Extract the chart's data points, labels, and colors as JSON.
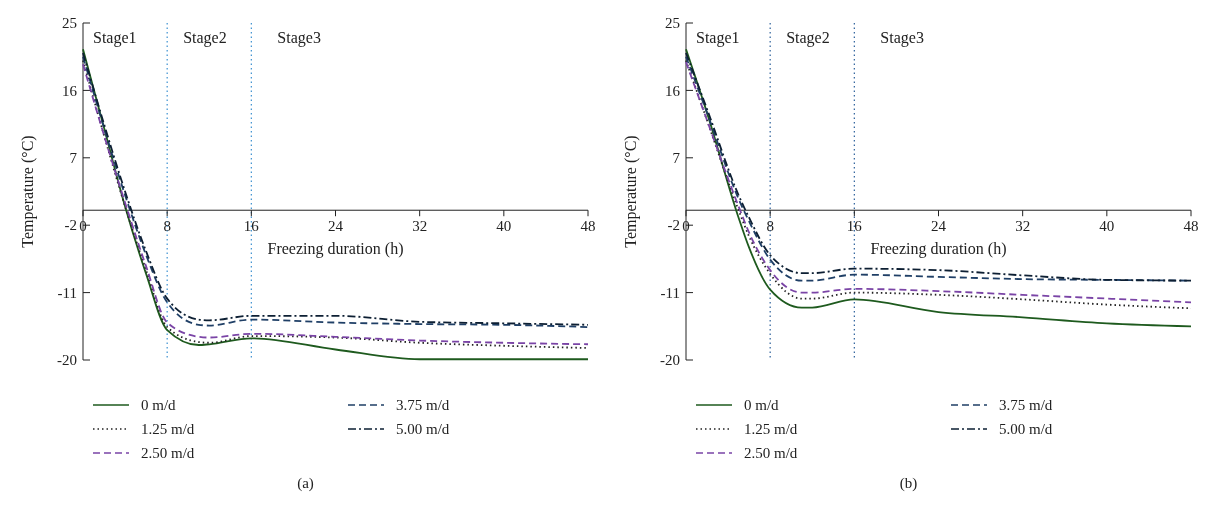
{
  "chart_data": [
    {
      "type": "line",
      "ylabel": "Temperature (°C)",
      "xlabel": "Freezing duration (h)",
      "xlim": [
        0,
        48
      ],
      "xticks": [
        0,
        8,
        16,
        24,
        32,
        40,
        48
      ],
      "ylim": [
        -20,
        25
      ],
      "yticks": [
        -20,
        -11,
        -2,
        7,
        16,
        25
      ],
      "legend": "bottom",
      "ref_lines": [
        {
          "axis": "x",
          "value": 8,
          "color": "#3a8fd0",
          "line_style": "dotted"
        },
        {
          "axis": "x",
          "value": 16,
          "color": "#3a8fd0",
          "line_style": "dotted"
        }
      ],
      "annotations": [
        "Stage1",
        "Stage2",
        "Stage3",
        "(a)"
      ],
      "x": [
        0,
        2,
        4,
        6,
        8,
        11,
        12,
        16,
        24,
        32,
        40,
        48
      ],
      "series": [
        {
          "name": "0 m/d",
          "color": "#1e5a1e",
          "line_style": "solid",
          "values": [
            21.5,
            11,
            0.5,
            -8.5,
            -16.0,
            -18.0,
            -17.9,
            -17.1,
            -18.6,
            -19.9,
            -19.9,
            -19.9
          ]
        },
        {
          "name": "1.25 m/d",
          "color": "#222222",
          "line_style": "dotted",
          "values": [
            20,
            10,
            0.5,
            -8,
            -15.6,
            -17.6,
            -17.7,
            -16.8,
            -17.0,
            -17.7,
            -18.1,
            -18.4
          ]
        },
        {
          "name": "2.50 m/d",
          "color": "#7a44a6",
          "line_style": "dashed",
          "values": [
            19.5,
            10,
            1,
            -7.5,
            -15.0,
            -16.9,
            -17.0,
            -16.5,
            -16.9,
            -17.4,
            -17.7,
            -17.9
          ]
        },
        {
          "name": "3.75 m/d",
          "color": "#1f3f66",
          "line_style": "dashed",
          "values": [
            20.5,
            11,
            2,
            -6,
            -12.3,
            -15.3,
            -15.4,
            -14.6,
            -15.0,
            -15.2,
            -15.3,
            -15.6
          ]
        },
        {
          "name": "5.00 m/d",
          "color": "#0d1f33",
          "line_style": "dashdot",
          "values": [
            21,
            11.5,
            2.5,
            -5.5,
            -11.8,
            -14.6,
            -14.7,
            -14.1,
            -14.1,
            -14.9,
            -15.1,
            -15.3
          ]
        }
      ]
    },
    {
      "type": "line",
      "ylabel": "Temperature (°C)",
      "xlabel": "Freezing duration (h)",
      "xlim": [
        0,
        48
      ],
      "xticks": [
        0,
        8,
        16,
        24,
        32,
        40,
        48
      ],
      "ylim": [
        -20,
        25
      ],
      "yticks": [
        -20,
        -11,
        -2,
        7,
        16,
        25
      ],
      "legend": "bottom",
      "ref_lines": [
        {
          "axis": "x",
          "value": 8,
          "color": "#2a5f9a",
          "line_style": "dotted"
        },
        {
          "axis": "x",
          "value": 16,
          "color": "#2a5f9a",
          "line_style": "dotted"
        }
      ],
      "annotations": [
        "Stage1",
        "Stage2",
        "Stage3",
        "(b)"
      ],
      "x": [
        0,
        2,
        5,
        6,
        8,
        11,
        12,
        16,
        24,
        32,
        40,
        48
      ],
      "series": [
        {
          "name": "0 m/d",
          "color": "#1e5a1e",
          "line_style": "solid",
          "values": [
            21.5,
            13,
            -1,
            -5,
            -10.6,
            -13.0,
            -13.0,
            -11.9,
            -13.6,
            -14.3,
            -15.1,
            -15.5
          ]
        },
        {
          "name": "1.25 m/d",
          "color": "#222222",
          "line_style": "dotted",
          "values": [
            20,
            12,
            0,
            -3.5,
            -8.5,
            -11.8,
            -11.8,
            -11.0,
            -11.3,
            -11.9,
            -12.6,
            -13.1
          ]
        },
        {
          "name": "2.50 m/d",
          "color": "#7a44a6",
          "line_style": "dashed",
          "values": [
            19.8,
            12,
            0.5,
            -3,
            -8,
            -11.0,
            -11.0,
            -10.5,
            -10.8,
            -11.3,
            -11.8,
            -12.3
          ]
        },
        {
          "name": "3.75 m/d",
          "color": "#1f3f66",
          "line_style": "dashed",
          "values": [
            20.5,
            13,
            1.5,
            -1.5,
            -6.6,
            -9.4,
            -9.4,
            -8.6,
            -8.9,
            -9.2,
            -9.3,
            -9.4
          ]
        },
        {
          "name": "5.00 m/d",
          "color": "#0d1f33",
          "line_style": "dashdot",
          "values": [
            21,
            13.5,
            2,
            -1,
            -6,
            -8.4,
            -8.4,
            -7.8,
            -8.0,
            -8.7,
            -9.3,
            -9.4
          ]
        }
      ]
    }
  ]
}
